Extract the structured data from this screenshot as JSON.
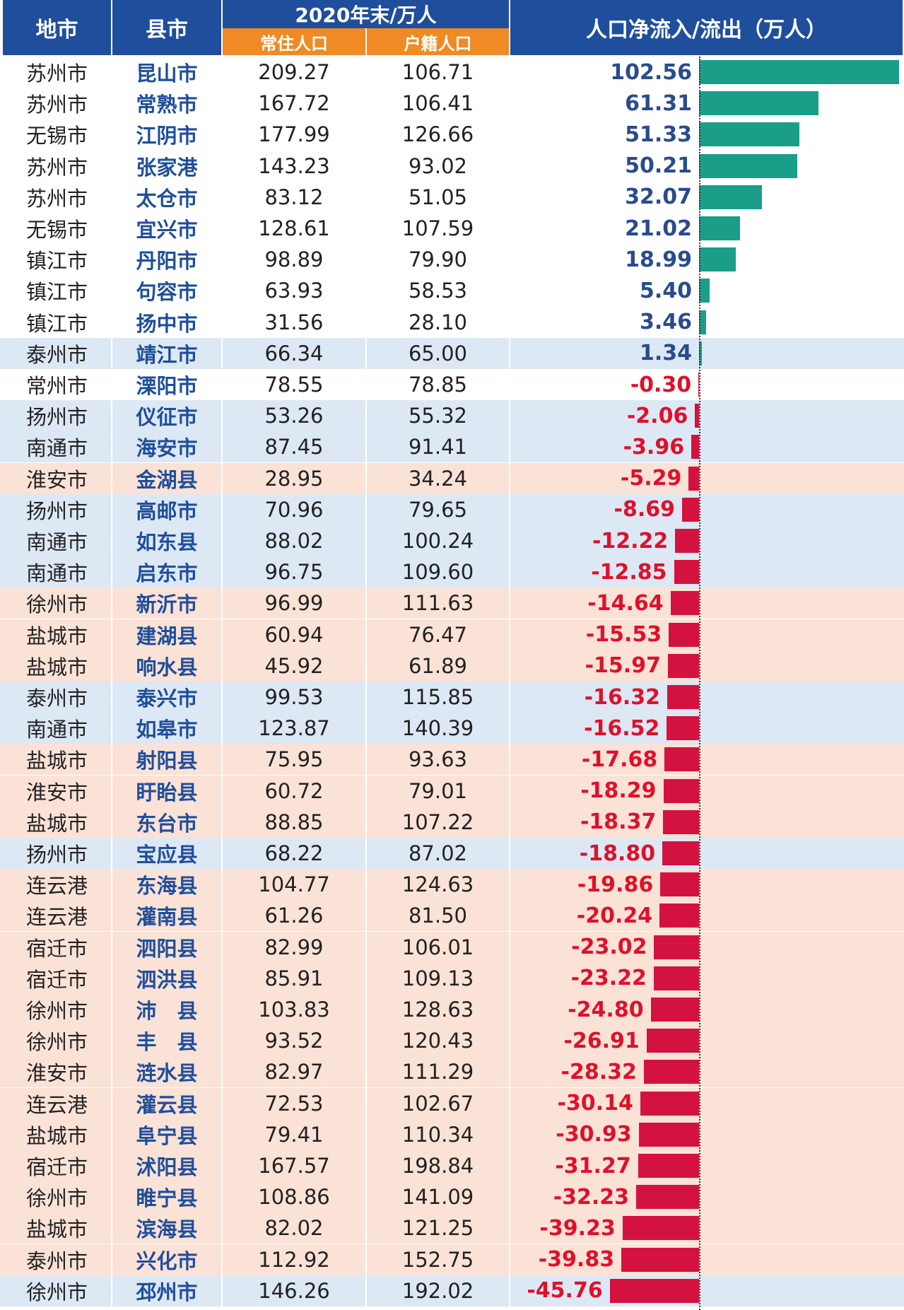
{
  "header": {
    "city": "地市",
    "county": "县市",
    "period": "2020年末/万人",
    "resident": "常住人口",
    "registered": "户籍人口",
    "net": "人口净流入/流出（万人）"
  },
  "rows": [
    [
      "苏州市",
      "昆山市",
      "209.27",
      "106.71",
      "102.56"
    ],
    [
      "苏州市",
      "常熟市",
      "167.72",
      "106.41",
      "61.31"
    ],
    [
      "无锡市",
      "江阴市",
      "177.99",
      "126.66",
      "51.33"
    ],
    [
      "苏州市",
      "张家港",
      "143.23",
      "93.02",
      "50.21"
    ],
    [
      "苏州市",
      "太仓市",
      "83.12",
      "51.05",
      "32.07"
    ],
    [
      "无锡市",
      "宜兴市",
      "128.61",
      "107.59",
      "21.02"
    ],
    [
      "镇江市",
      "丹阳市",
      "98.89",
      "79.90",
      "18.99"
    ],
    [
      "镇江市",
      "句容市",
      "63.93",
      "58.53",
      "5.40"
    ],
    [
      "镇江市",
      "扬中市",
      "31.56",
      "28.10",
      "3.46"
    ],
    [
      "泰州市",
      "靖江市",
      "66.34",
      "65.00",
      "1.34"
    ],
    [
      "常州市",
      "溧阳市",
      "78.55",
      "78.85",
      "-0.30"
    ],
    [
      "扬州市",
      "仪征市",
      "53.26",
      "55.32",
      "-2.06"
    ],
    [
      "南通市",
      "海安市",
      "87.45",
      "91.41",
      "-3.96"
    ],
    [
      "淮安市",
      "金湖县",
      "28.95",
      "34.24",
      "-5.29"
    ],
    [
      "扬州市",
      "高邮市",
      "70.96",
      "79.65",
      "-8.69"
    ],
    [
      "南通市",
      "如东县",
      "88.02",
      "100.24",
      "-12.22"
    ],
    [
      "南通市",
      "启东市",
      "96.75",
      "109.60",
      "-12.85"
    ],
    [
      "徐州市",
      "新沂市",
      "96.99",
      "111.63",
      "-14.64"
    ],
    [
      "盐城市",
      "建湖县",
      "60.94",
      "76.47",
      "-15.53"
    ],
    [
      "盐城市",
      "响水县",
      "45.92",
      "61.89",
      "-15.97"
    ],
    [
      "泰州市",
      "泰兴市",
      "99.53",
      "115.85",
      "-16.32"
    ],
    [
      "南通市",
      "如皋市",
      "123.87",
      "140.39",
      "-16.52"
    ],
    [
      "盐城市",
      "射阳县",
      "75.95",
      "93.63",
      "-17.68"
    ],
    [
      "淮安市",
      "盱眙县",
      "60.72",
      "79.01",
      "-18.29"
    ],
    [
      "盐城市",
      "东台市",
      "88.85",
      "107.22",
      "-18.37"
    ],
    [
      "扬州市",
      "宝应县",
      "68.22",
      "87.02",
      "-18.80"
    ],
    [
      "连云港",
      "东海县",
      "104.77",
      "124.63",
      "-19.86"
    ],
    [
      "连云港",
      "灌南县",
      "61.26",
      "81.50",
      "-20.24"
    ],
    [
      "宿迁市",
      "泗阳县",
      "82.99",
      "106.01",
      "-23.02"
    ],
    [
      "宿迁市",
      "泗洪县",
      "85.91",
      "109.13",
      "-23.22"
    ],
    [
      "徐州市",
      "沛　县",
      "103.83",
      "128.63",
      "-24.80"
    ],
    [
      "徐州市",
      "丰　县",
      "93.52",
      "120.43",
      "-26.91"
    ],
    [
      "淮安市",
      "涟水县",
      "82.97",
      "111.29",
      "-28.32"
    ],
    [
      "连云港",
      "灌云县",
      "72.53",
      "102.67",
      "-30.14"
    ],
    [
      "盐城市",
      "阜宁县",
      "79.41",
      "110.34",
      "-30.93"
    ],
    [
      "宿迁市",
      "沭阳县",
      "167.57",
      "198.84",
      "-31.27"
    ],
    [
      "徐州市",
      "睢宁县",
      "108.86",
      "141.09",
      "-32.23"
    ],
    [
      "盐城市",
      "滨海县",
      "82.02",
      "121.25",
      "-39.23"
    ],
    [
      "泰州市",
      "兴化市",
      "112.92",
      "152.75",
      "-39.83"
    ],
    [
      "徐州市",
      "邳州市",
      "146.26",
      "192.02",
      "-45.76"
    ]
  ]
}
